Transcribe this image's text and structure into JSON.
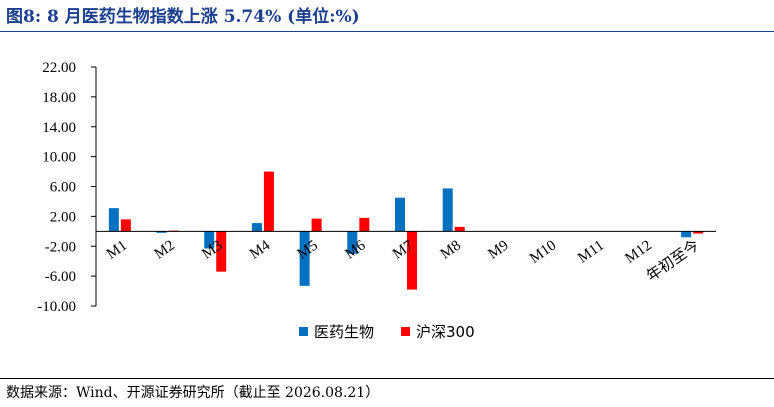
{
  "title": "图8:  8 月医药生物指数上涨 5.74% (单位:%)",
  "source": "数据来源：Wind、开源证券研究所（截止至 2026.08.21）",
  "colors": {
    "title": "#1a3f8f",
    "series1": "#0070c0",
    "series2": "#ff0000"
  },
  "chart_data": {
    "type": "bar",
    "categories": [
      "M1",
      "M2",
      "M3",
      "M4",
      "M5",
      "M6",
      "M7",
      "M8",
      "M9",
      "M10",
      "M11",
      "M12",
      "年初至今"
    ],
    "series": [
      {
        "name": "医药生物",
        "values": [
          3.1,
          -0.2,
          -2.3,
          1.1,
          -7.3,
          -3.0,
          4.5,
          5.74,
          0,
          0,
          0,
          0,
          -0.8
        ]
      },
      {
        "name": "沪深300",
        "values": [
          1.6,
          0.1,
          -5.4,
          8.0,
          1.7,
          1.8,
          -7.8,
          0.6,
          0,
          0,
          0,
          0,
          -0.3
        ]
      }
    ],
    "ylim": [
      -10,
      22
    ],
    "yticks": [
      22,
      18,
      14,
      10,
      6,
      2,
      -2,
      -6,
      -10
    ],
    "ytick_labels": [
      "22.00",
      "18.00",
      "14.00",
      "10.00",
      "6.00",
      "2.00",
      "-2.00",
      "-6.00",
      "-10.00"
    ],
    "grid": false,
    "legend_position": "bottom-center"
  }
}
